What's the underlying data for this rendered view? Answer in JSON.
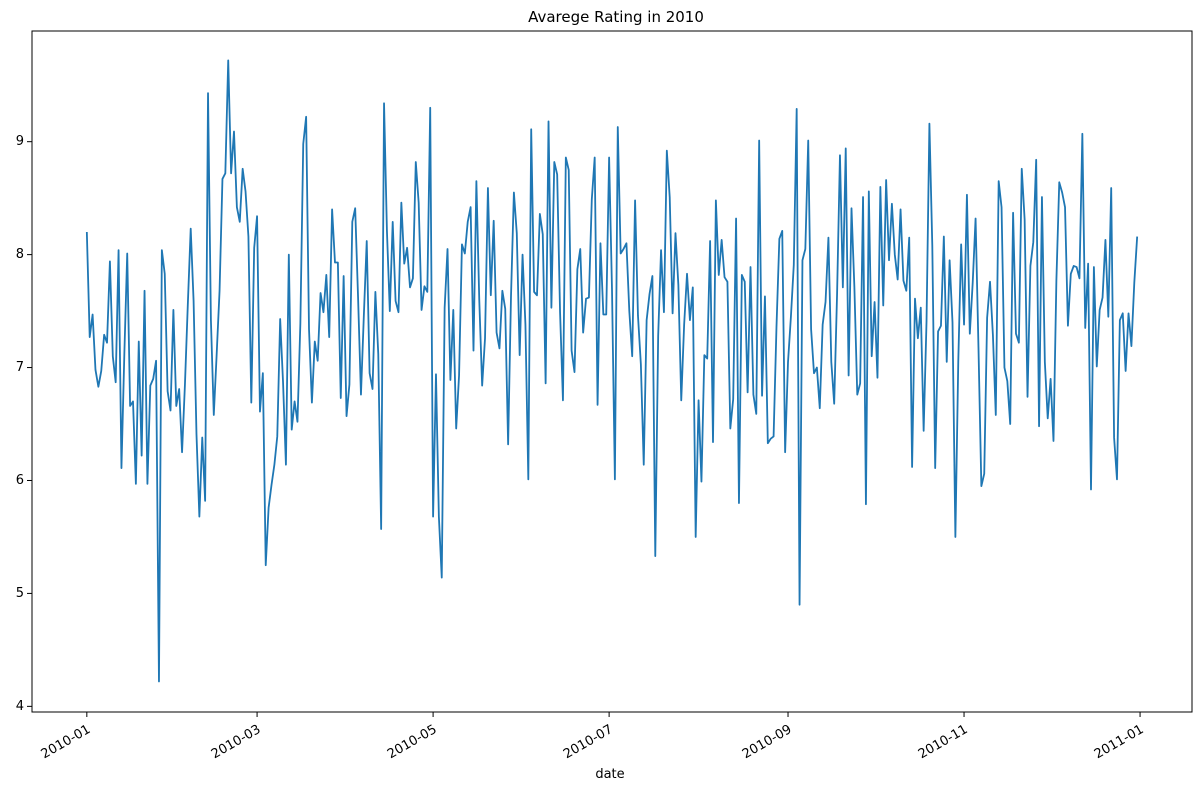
{
  "chart_data": {
    "type": "line",
    "title": "Avarege Rating in 2010",
    "xlabel": "date",
    "ylabel": "",
    "x_start": "2010-01-01",
    "x_end": "2010-12-31",
    "xlim": [
      "2009-12-13",
      "2011-01-19"
    ],
    "ylim": [
      3.95,
      9.98
    ],
    "grid": false,
    "legend": "none",
    "x_ticks": [
      "2010-01",
      "2010-03",
      "2010-05",
      "2010-07",
      "2010-09",
      "2010-11",
      "2011-01"
    ],
    "y_ticks": [
      "4",
      "5",
      "6",
      "7",
      "8",
      "9"
    ],
    "series": [
      {
        "color": "#1f77b4",
        "values": [
          8.2,
          7.27,
          7.47,
          6.98,
          6.83,
          6.97,
          7.29,
          7.22,
          7.94,
          7.1,
          6.87,
          8.04,
          6.11,
          7.12,
          8.01,
          6.66,
          6.7,
          5.97,
          7.23,
          6.22,
          7.68,
          5.97,
          6.84,
          6.9,
          7.06,
          4.22,
          8.04,
          7.83,
          6.79,
          6.62,
          7.51,
          6.66,
          6.81,
          6.25,
          6.85,
          7.56,
          8.23,
          7.59,
          6.41,
          5.68,
          6.38,
          5.82,
          9.43,
          7.42,
          6.58,
          7.12,
          7.68,
          8.67,
          8.72,
          9.72,
          8.72,
          9.09,
          8.42,
          8.29,
          8.76,
          8.56,
          8.16,
          6.69,
          8.06,
          8.34,
          6.61,
          6.95,
          5.25,
          5.76,
          5.96,
          6.14,
          6.39,
          7.43,
          6.87,
          6.14,
          8.0,
          6.45,
          6.7,
          6.52,
          7.39,
          8.98,
          9.22,
          7.34,
          6.69,
          7.23,
          7.06,
          7.66,
          7.49,
          7.82,
          7.27,
          8.4,
          7.93,
          7.93,
          6.73,
          7.81,
          6.57,
          6.85,
          8.29,
          8.41,
          7.62,
          6.76,
          7.46,
          8.12,
          6.95,
          6.81,
          7.67,
          7.12,
          5.57,
          9.34,
          8.21,
          7.5,
          8.29,
          7.59,
          7.49,
          8.46,
          7.92,
          8.06,
          7.71,
          7.79,
          8.82,
          8.46,
          7.51,
          7.72,
          7.67,
          9.3,
          5.68,
          6.94,
          5.68,
          5.14,
          7.53,
          8.05,
          6.89,
          7.51,
          6.46,
          6.93,
          8.09,
          8.01,
          8.29,
          8.42,
          7.15,
          8.65,
          7.6,
          6.84,
          7.26,
          8.59,
          7.64,
          8.3,
          7.31,
          7.17,
          7.68,
          7.52,
          6.32,
          7.63,
          8.55,
          8.19,
          7.11,
          8.0,
          7.38,
          6.01,
          9.11,
          7.67,
          7.64,
          8.36,
          8.18,
          6.86,
          9.18,
          7.53,
          8.82,
          8.71,
          7.49,
          6.71,
          8.86,
          8.75,
          7.15,
          6.96,
          7.87,
          8.05,
          7.31,
          7.61,
          7.62,
          8.49,
          8.86,
          6.67,
          8.1,
          7.47,
          7.47,
          8.86,
          7.69,
          6.01,
          9.13,
          8.01,
          8.05,
          8.1,
          7.5,
          7.1,
          8.48,
          7.46,
          7.03,
          6.14,
          7.42,
          7.65,
          7.81,
          5.33,
          7.28,
          8.04,
          7.49,
          8.92,
          8.51,
          7.48,
          8.19,
          7.73,
          6.71,
          7.38,
          7.83,
          7.42,
          7.71,
          5.5,
          6.71,
          5.99,
          7.11,
          7.08,
          8.12,
          6.34,
          8.48,
          7.82,
          8.13,
          7.8,
          7.76,
          6.46,
          6.72,
          8.32,
          5.8,
          7.82,
          7.76,
          6.78,
          7.89,
          6.76,
          6.59,
          9.01,
          6.75,
          7.63,
          6.33,
          6.37,
          6.39,
          7.36,
          8.14,
          8.21,
          6.25,
          7.05,
          7.45,
          7.91,
          9.29,
          4.9,
          7.95,
          8.05,
          9.01,
          7.34,
          6.95,
          7.0,
          6.64,
          7.38,
          7.58,
          8.15,
          7.05,
          6.68,
          7.65,
          8.88,
          7.71,
          8.94,
          6.93,
          8.41,
          7.71,
          6.76,
          6.86,
          8.51,
          5.79,
          8.56,
          7.1,
          7.58,
          6.91,
          8.6,
          7.55,
          8.66,
          7.95,
          8.45,
          8.0,
          7.78,
          8.4,
          7.77,
          7.68,
          8.15,
          6.12,
          7.61,
          7.26,
          7.53,
          6.44,
          7.41,
          9.16,
          8.08,
          6.11,
          7.32,
          7.37,
          8.16,
          7.05,
          7.95,
          7.4,
          5.5,
          7.05,
          8.09,
          7.38,
          8.53,
          7.3,
          7.75,
          8.32,
          7.18,
          5.95,
          6.06,
          7.44,
          7.76,
          7.29,
          6.58,
          8.65,
          8.42,
          7.0,
          6.88,
          6.5,
          8.37,
          7.3,
          7.22,
          8.76,
          8.31,
          6.74,
          7.9,
          8.11,
          8.84,
          6.48,
          8.51,
          7.05,
          6.55,
          6.9,
          6.35,
          7.77,
          8.64,
          8.55,
          8.42,
          7.37,
          7.83,
          7.9,
          7.89,
          7.79,
          9.07,
          7.35,
          7.92,
          5.92,
          7.89,
          7.01,
          7.51,
          7.62,
          8.13,
          7.45,
          8.59,
          6.38,
          6.01,
          7.42,
          7.48,
          6.97,
          7.48,
          7.19,
          7.75,
          8.16
        ]
      }
    ]
  }
}
